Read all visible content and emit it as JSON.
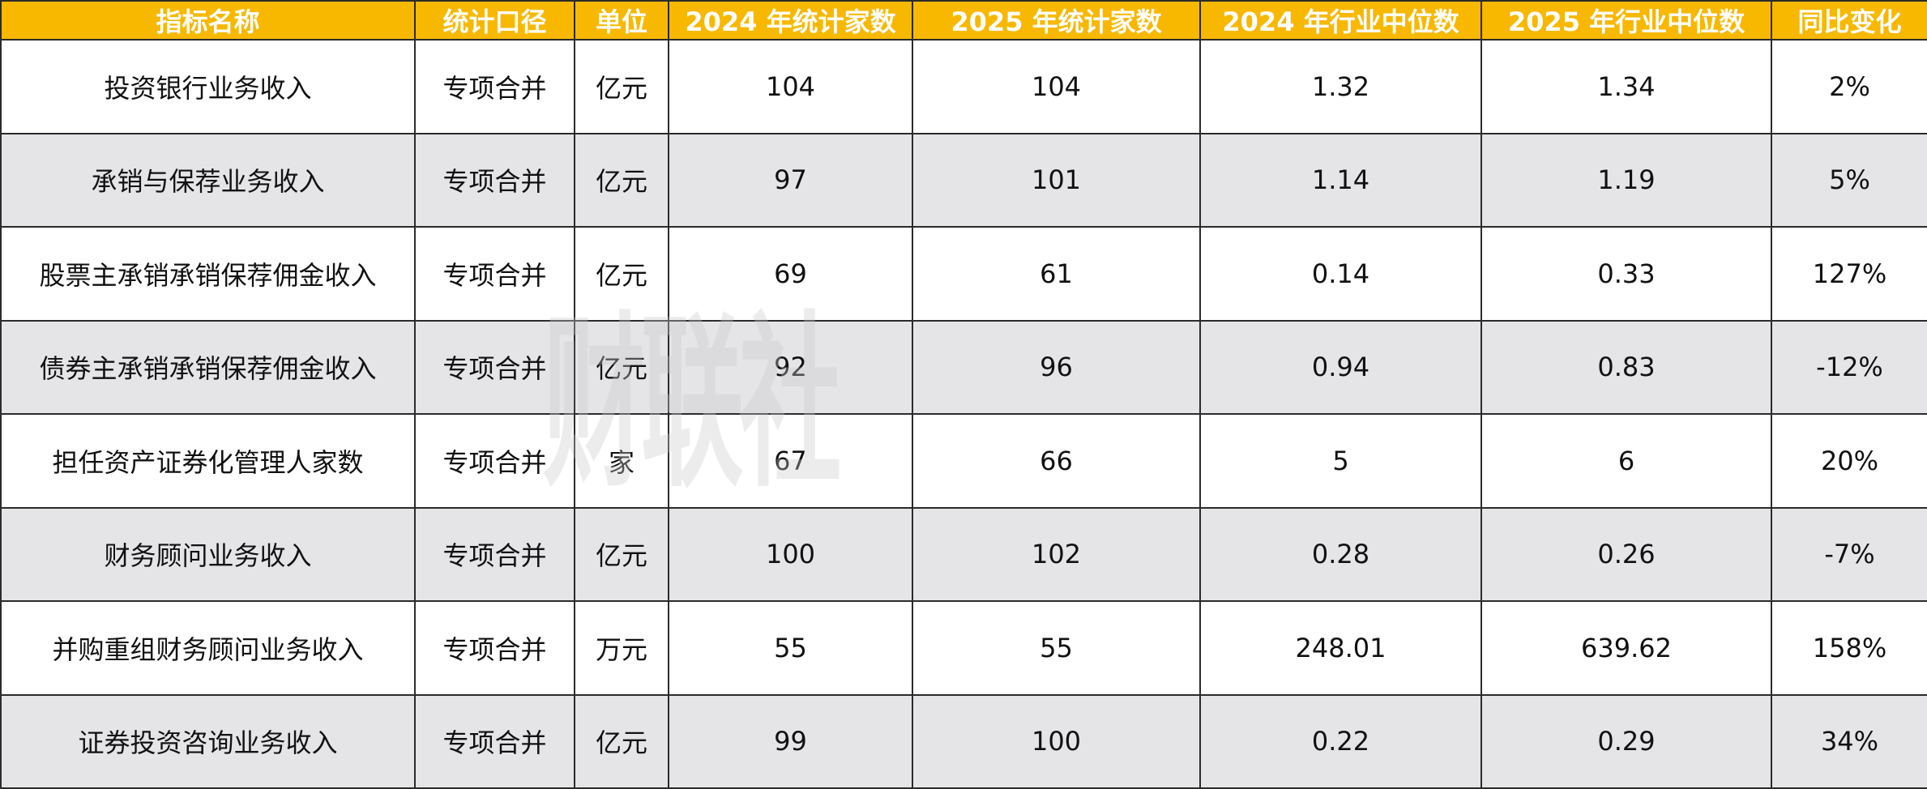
{
  "table": {
    "header": [
      "指标名称",
      "统计口径",
      "单位",
      "2024 年统计家数",
      "2025 年统计家数",
      "2024 年行业中位数",
      "2025 年行业中位数",
      "同比变化"
    ],
    "rows": [
      [
        "投资银行业务收入",
        "专项合并",
        "亿元",
        "104",
        "104",
        "1.32",
        "1.34",
        "2%"
      ],
      [
        "承销与保荐业务收入",
        "专项合并",
        "亿元",
        "97",
        "101",
        "1.14",
        "1.19",
        "5%"
      ],
      [
        "股票主承销承销保荐佣金收入",
        "专项合并",
        "亿元",
        "69",
        "61",
        "0.14",
        "0.33",
        "127%"
      ],
      [
        "债券主承销承销保荐佣金收入",
        "专项合并",
        "亿元",
        "92",
        "96",
        "0.94",
        "0.83",
        "-12%"
      ],
      [
        "担任资产证券化管理人家数",
        "专项合并",
        "家",
        "67",
        "66",
        "5",
        "6",
        "20%"
      ],
      [
        "财务顾问业务收入",
        "专项合并",
        "亿元",
        "100",
        "102",
        "0.28",
        "0.26",
        "-7%"
      ],
      [
        "并购重组财务顾问业务收入",
        "专项合并",
        "万元",
        "55",
        "55",
        "248.01",
        "639.62",
        "158%"
      ],
      [
        "证券投资咨询业务收入",
        "专项合并",
        "亿元",
        "99",
        "100",
        "0.22",
        "0.29",
        "34%"
      ]
    ]
  },
  "watermark": "财联社"
}
